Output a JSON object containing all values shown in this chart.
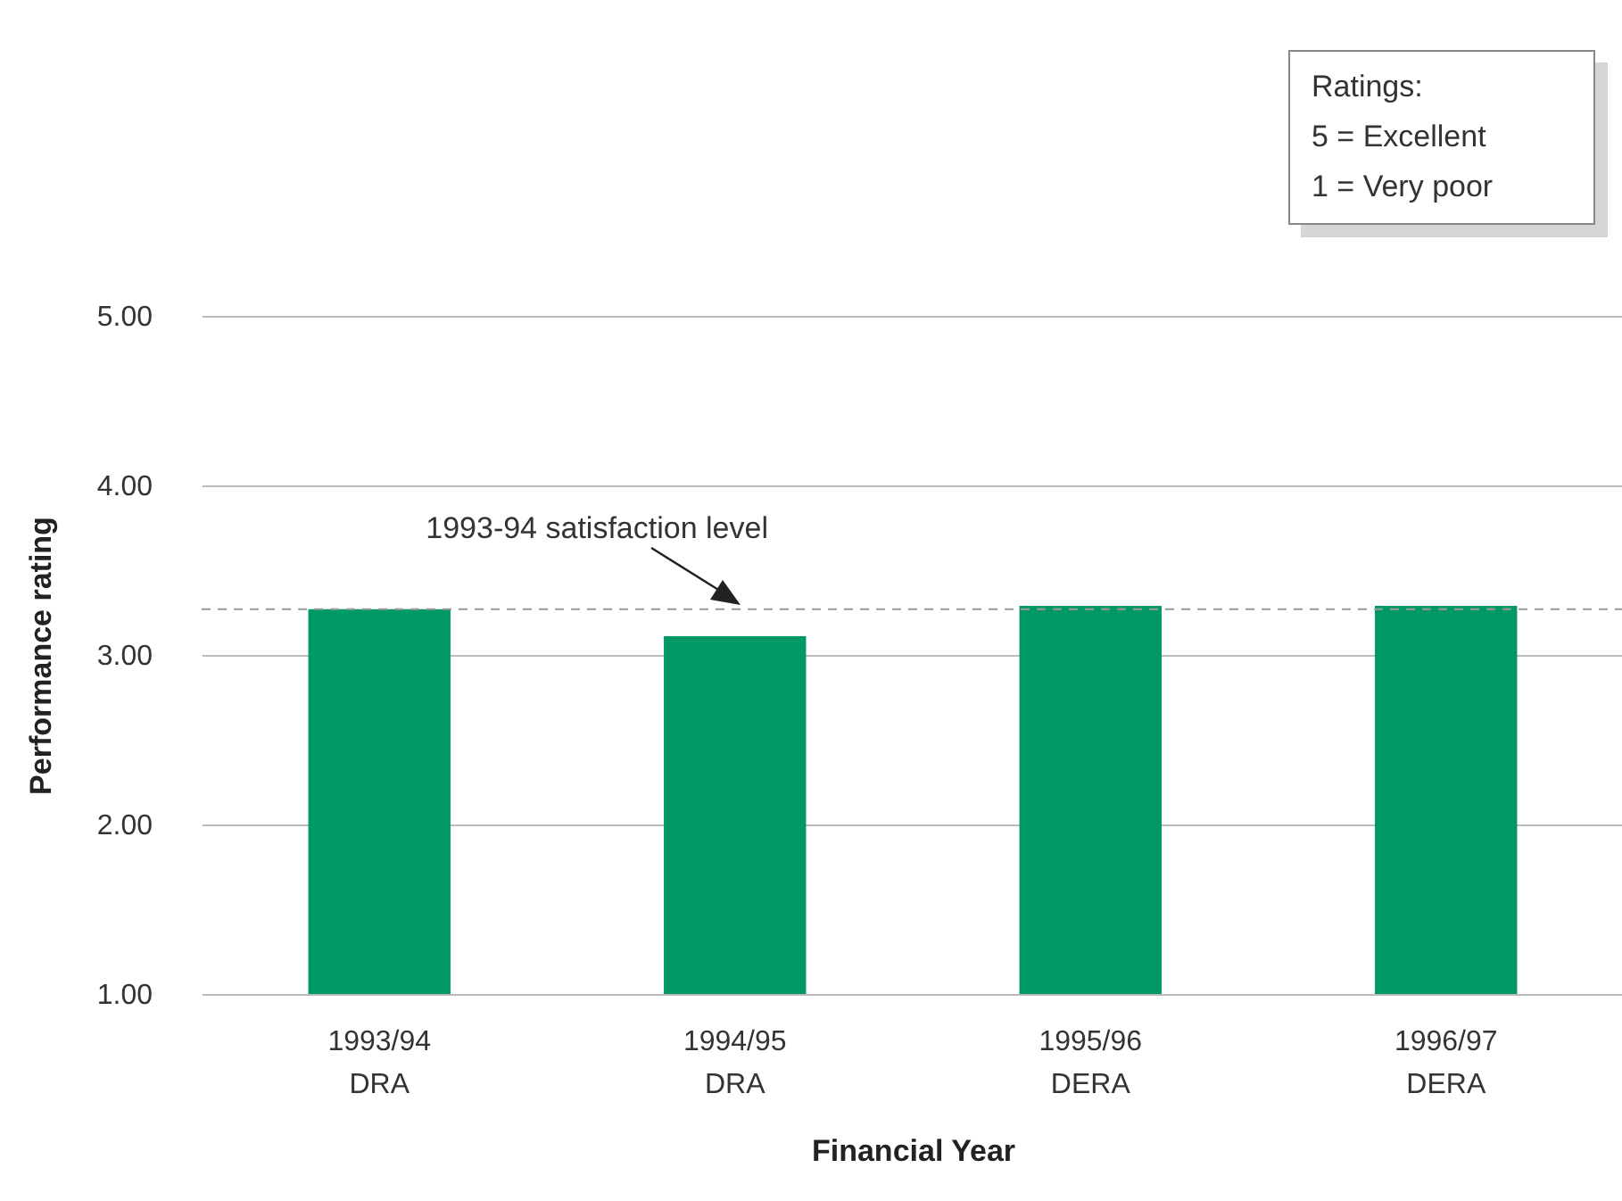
{
  "chart_data": {
    "type": "bar",
    "xlabel": "Financial Year",
    "ylabel": "Performance rating",
    "categories": [
      "1993/94 DRA",
      "1994/95 DRA",
      "1995/96 DERA",
      "1996/97 DERA"
    ],
    "values": [
      3.27,
      3.11,
      3.29,
      3.29
    ],
    "color": "#009966",
    "ylim": [
      1,
      5
    ],
    "yticks": [
      {
        "value": 1,
        "label": "1.00"
      },
      {
        "value": 2,
        "label": "2.00"
      },
      {
        "value": 3,
        "label": "3.00"
      },
      {
        "value": 4,
        "label": "4.00"
      },
      {
        "value": 5,
        "label": "5.00"
      }
    ],
    "grid": "y",
    "ref_lines": [
      {
        "axis": "y",
        "value": 3.27,
        "label": "1993-94 satisfaction level",
        "color": "#999999",
        "line_style": "dashed"
      }
    ],
    "annotations": [
      "Ratings:",
      "5 = Excellent",
      "1 = Very poor"
    ]
  }
}
